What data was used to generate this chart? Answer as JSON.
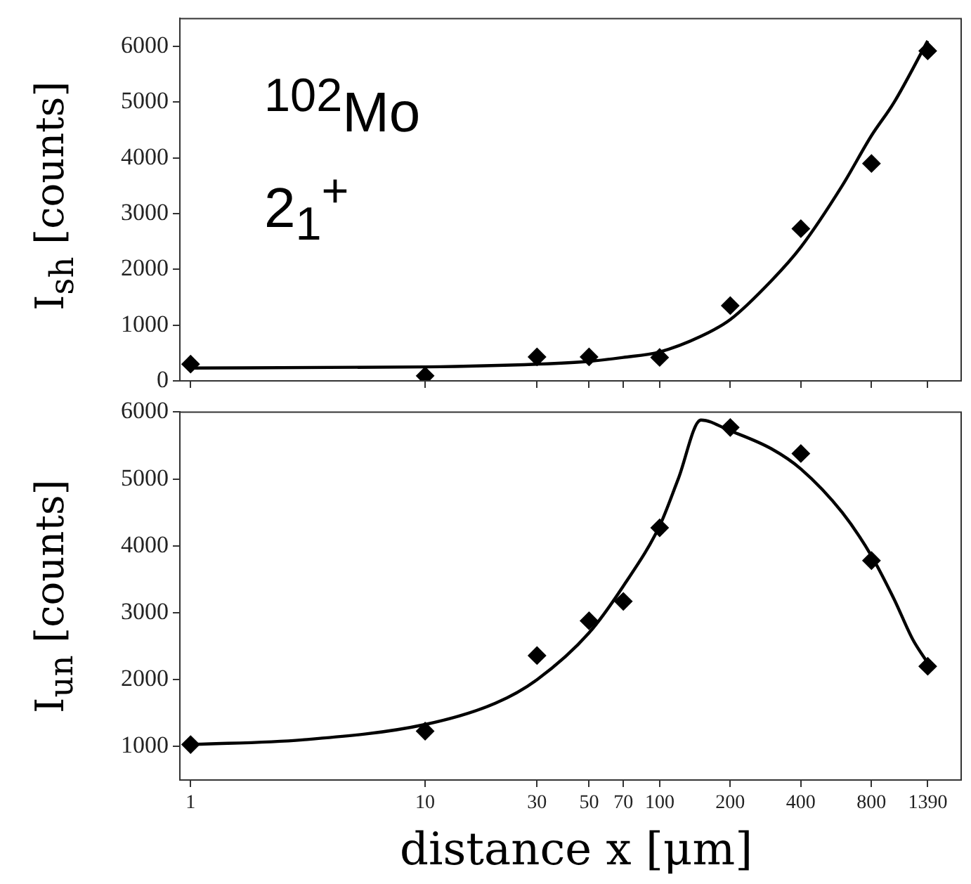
{
  "chart_data": [
    {
      "type": "scatter",
      "ylabel": "I$_{sh}$ [counts]",
      "log": "x",
      "xlim": [
        0.9,
        1930
      ],
      "xticks": [
        1,
        10,
        30,
        50,
        70,
        100,
        200,
        400,
        800,
        1390
      ],
      "ylim": [
        0,
        6500
      ],
      "yticks": [
        0,
        1000,
        2000,
        3000,
        4000,
        5000,
        6000
      ],
      "tick_labels": "y",
      "legend": false,
      "grid": false,
      "annotations": [
        "$^{102}$Mo",
        "2$_{1}$$^{+}$"
      ],
      "series": [
        {
          "marker": "diamond",
          "color": "#000000",
          "x": [
            1,
            10,
            30,
            50,
            70,
            100,
            200,
            400,
            800,
            1390
          ],
          "values": [
            300,
            90,
            430,
            430,
            null,
            420,
            1350,
            2730,
            3900,
            5920
          ]
        },
        {
          "type": "line",
          "marker": "none",
          "line_style": "solid",
          "color": "#000000",
          "x": [
            1,
            10,
            30,
            50,
            70,
            100,
            150,
            200,
            300,
            400,
            600,
            800,
            1000,
            1390
          ],
          "values": [
            230,
            250,
            300,
            350,
            420,
            520,
            800,
            1100,
            1800,
            2400,
            3500,
            4400,
            5000,
            6100
          ]
        }
      ]
    },
    {
      "type": "scatter",
      "ylabel": "I$_{un}$ [counts]",
      "xlabel": "distance x [μm]",
      "log": "x",
      "xlim": [
        0.9,
        1930
      ],
      "xticks": [
        1,
        10,
        30,
        50,
        70,
        100,
        200,
        400,
        800,
        1390
      ],
      "ylim": [
        500,
        6000
      ],
      "yticks": [
        1000,
        2000,
        3000,
        4000,
        5000,
        6000
      ],
      "legend": false,
      "grid": false,
      "series": [
        {
          "marker": "diamond",
          "color": "#000000",
          "x": [
            1,
            10,
            30,
            50,
            70,
            100,
            200,
            400,
            800,
            1390
          ],
          "values": [
            1030,
            1230,
            2360,
            2880,
            3170,
            4270,
            5770,
            5380,
            3780,
            2200
          ]
        },
        {
          "type": "line",
          "marker": "none",
          "line_style": "solid",
          "color": "#000000",
          "x": [
            1,
            3,
            10,
            20,
            30,
            50,
            70,
            100,
            120,
            150,
            200,
            300,
            400,
            600,
            800,
            1000,
            1200,
            1390
          ],
          "values": [
            1030,
            1100,
            1330,
            1650,
            2000,
            2700,
            3400,
            4300,
            5000,
            5880,
            5720,
            5450,
            5150,
            4500,
            3850,
            3200,
            2600,
            2250
          ]
        }
      ]
    }
  ]
}
